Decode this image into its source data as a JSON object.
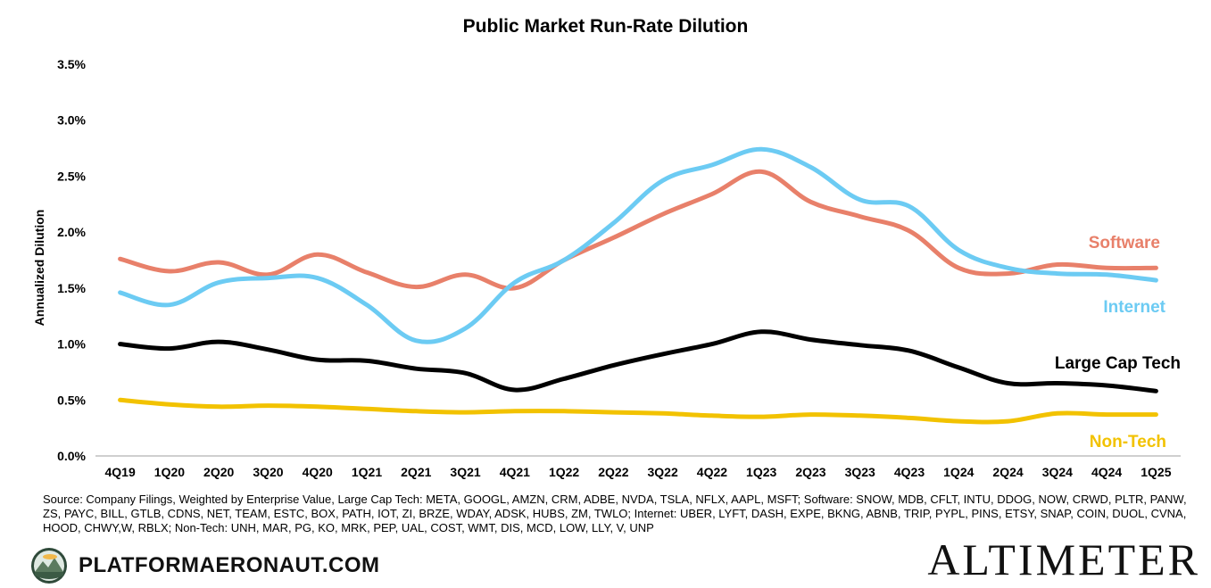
{
  "chart_data": {
    "type": "line",
    "title": "Public Market Run-Rate Dilution",
    "ylabel": "Annualized Dilution",
    "xlabel": "",
    "ylim": [
      0,
      3.5
    ],
    "yticks": [
      "0.0%",
      "0.5%",
      "1.0%",
      "1.5%",
      "2.0%",
      "2.5%",
      "3.0%",
      "3.5%"
    ],
    "grid": false,
    "categories": [
      "4Q19",
      "1Q20",
      "2Q20",
      "3Q20",
      "4Q20",
      "1Q21",
      "2Q21",
      "3Q21",
      "4Q21",
      "1Q22",
      "2Q22",
      "3Q22",
      "4Q22",
      "1Q23",
      "2Q23",
      "3Q23",
      "4Q23",
      "1Q24",
      "2Q24",
      "3Q24",
      "4Q24",
      "1Q25"
    ],
    "series": [
      {
        "name": "Software",
        "color": "#E8806A",
        "values": [
          1.76,
          1.65,
          1.73,
          1.62,
          1.8,
          1.64,
          1.51,
          1.62,
          1.5,
          1.75,
          1.95,
          2.16,
          2.34,
          2.54,
          2.27,
          2.14,
          2.01,
          1.68,
          1.63,
          1.71,
          1.68,
          1.68
        ]
      },
      {
        "name": "Internet",
        "color": "#6CCBF3",
        "values": [
          1.46,
          1.35,
          1.55,
          1.59,
          1.59,
          1.35,
          1.03,
          1.14,
          1.55,
          1.75,
          2.08,
          2.46,
          2.6,
          2.74,
          2.58,
          2.29,
          2.23,
          1.84,
          1.68,
          1.63,
          1.62,
          1.57
        ]
      },
      {
        "name": "Large Cap Tech",
        "color": "#000000",
        "values": [
          1.0,
          0.96,
          1.02,
          0.95,
          0.86,
          0.85,
          0.78,
          0.74,
          0.59,
          0.69,
          0.81,
          0.91,
          1.0,
          1.11,
          1.04,
          0.99,
          0.94,
          0.79,
          0.65,
          0.65,
          0.63,
          0.58
        ]
      },
      {
        "name": "Non-Tech",
        "color": "#F2C200",
        "values": [
          0.5,
          0.46,
          0.44,
          0.45,
          0.44,
          0.42,
          0.4,
          0.39,
          0.4,
          0.4,
          0.39,
          0.38,
          0.36,
          0.35,
          0.37,
          0.36,
          0.34,
          0.31,
          0.31,
          0.38,
          0.37,
          0.37
        ]
      }
    ]
  },
  "source_note": "Source: Company Filings, Weighted by Enterprise Value, Large Cap Tech: META, GOOGL, AMZN, CRM, ADBE, NVDA, TSLA, NFLX, AAPL, MSFT; Software: SNOW, MDB, CFLT, INTU, DDOG, NOW, CRWD, PLTR, PANW, ZS, PAYC, BILL, GTLB, CDNS, NET, TEAM, ESTC, BOX, PATH, IOT, ZI, BRZE, WDAY, ADSK, HUBS, ZM, TWLO; Internet: UBER, LYFT, DASH, EXPE, BKNG, ABNB, TRIP, PYPL, PINS, ETSY, SNAP, COIN, DUOL, CVNA, HOOD, CHWY,W, RBLX; Non-Tech: UNH, MAR, PG, KO, MRK, PEP, UAL, COST, WMT, DIS, MCD, LOW, LLY, V, UNP",
  "footer": {
    "brand_text": "PLATFORMAERONAUT.COM",
    "brand_icon": "mountain-badge-icon",
    "company_logo_text": "ALTIMETER"
  }
}
